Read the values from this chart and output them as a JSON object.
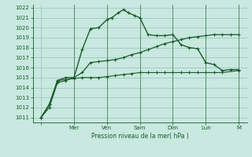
{
  "bg_color": "#c8e8e0",
  "grid_color": "#a0c8bc",
  "line_color": "#1a5c2a",
  "xlabel": "Pression niveau de la mer( hPa )",
  "ylim": [
    1011,
    1022
  ],
  "yticks": [
    1011,
    1012,
    1013,
    1014,
    1015,
    1016,
    1017,
    1018,
    1019,
    1020,
    1021,
    1022
  ],
  "xticklabels": [
    "",
    "Mer",
    "Ven",
    "Sam",
    "Dim",
    "Lun",
    "M"
  ],
  "xtick_positions": [
    0,
    2,
    4,
    6,
    8,
    10,
    12
  ],
  "total_x": 12,
  "series1_x": [
    0,
    0.5,
    1,
    1.5,
    2,
    2.5,
    3,
    3.5,
    4,
    4.5,
    5,
    5.5,
    6,
    6.5,
    7,
    7.5,
    8,
    8.5,
    9,
    9.5,
    10,
    10.5,
    11,
    12
  ],
  "series1_y": [
    1011,
    1012.3,
    1014.7,
    1014.8,
    1014.9,
    1015.0,
    1015.0,
    1015.0,
    1015.1,
    1015.2,
    1015.3,
    1015.4,
    1015.5,
    1015.5,
    1015.5,
    1015.5,
    1015.5,
    1015.5,
    1015.5,
    1015.5,
    1015.5,
    1015.5,
    1015.5,
    1015.7
  ],
  "series2_x": [
    0,
    0.5,
    1,
    1.5,
    2,
    2.5,
    3,
    3.5,
    4,
    4.3,
    4.7,
    5,
    5.3,
    5.7,
    6,
    6.5,
    7,
    7.5,
    8,
    8.5,
    9,
    9.5,
    10,
    10.5,
    11,
    11.5,
    12
  ],
  "series2_y": [
    1011,
    1012.3,
    1014.7,
    1015.0,
    1015.0,
    1017.8,
    1019.9,
    1020.0,
    1020.8,
    1021.0,
    1021.5,
    1021.8,
    1021.5,
    1021.2,
    1021.0,
    1019.3,
    1019.2,
    1019.2,
    1019.3,
    1018.3,
    1018.0,
    1017.9,
    1016.5,
    1016.3,
    1015.7,
    1015.8,
    1015.8
  ],
  "series3_x": [
    0,
    0.5,
    1,
    1.5,
    2,
    2.5,
    3,
    3.5,
    4,
    4.5,
    5,
    5.5,
    6,
    6.5,
    7,
    7.5,
    8,
    8.5,
    9,
    9.5,
    10,
    10.5,
    11,
    11.5,
    12
  ],
  "series3_y": [
    1011,
    1012.0,
    1014.5,
    1014.7,
    1015.0,
    1015.5,
    1016.5,
    1016.6,
    1016.7,
    1016.8,
    1017.0,
    1017.3,
    1017.5,
    1017.8,
    1018.1,
    1018.4,
    1018.6,
    1018.8,
    1019.0,
    1019.1,
    1019.2,
    1019.3,
    1019.3,
    1019.3,
    1019.3
  ]
}
